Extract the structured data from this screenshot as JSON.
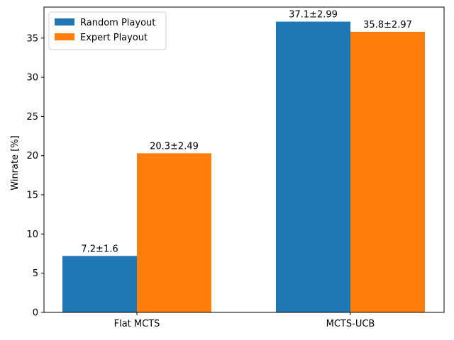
{
  "chart_data": {
    "type": "bar",
    "title": "",
    "xlabel": "",
    "ylabel": "Winrate [%]",
    "categories": [
      "Flat MCTS",
      "MCTS-UCB"
    ],
    "series": [
      {
        "name": "Random Playout",
        "values": [
          7.2,
          37.1
        ],
        "labels": [
          "7.2±1.6",
          "37.1±2.99"
        ],
        "color": "#1f77b4"
      },
      {
        "name": "Expert Playout",
        "values": [
          20.3,
          35.8
        ],
        "labels": [
          "20.3±2.49",
          "35.8±2.97"
        ],
        "color": "#ff7f0e"
      }
    ],
    "ylim": [
      0,
      38.955
    ],
    "yticks": [
      0,
      5,
      10,
      15,
      20,
      25,
      30,
      35
    ],
    "grid": false,
    "legend": "top-left"
  }
}
